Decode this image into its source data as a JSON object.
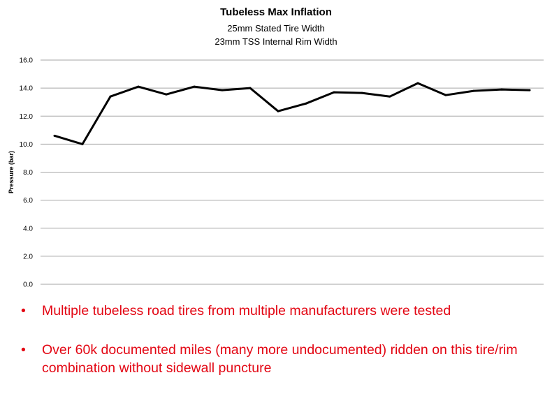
{
  "chart_data": {
    "type": "line",
    "title": "Tubeless Max Inflation",
    "subtitle_lines": [
      "25mm Stated Tire Width",
      "23mm TSS Internal Rim Width"
    ],
    "xlabel": "",
    "ylabel": "Pressure (bar)",
    "ylim": [
      0,
      16
    ],
    "yticks": [
      "0.0",
      "2.0",
      "4.0",
      "6.0",
      "8.0",
      "10.0",
      "12.0",
      "14.0",
      "16.0"
    ],
    "grid": true,
    "series": [
      {
        "color": "#000000",
        "values": [
          10.6,
          10.0,
          13.4,
          14.1,
          13.55,
          14.1,
          13.85,
          14.0,
          12.35,
          12.9,
          13.7,
          13.65,
          13.4,
          14.35,
          13.5,
          13.8,
          13.9,
          13.85
        ]
      }
    ]
  },
  "bullets": {
    "symbol": "•",
    "items": [
      "Multiple tubeless road tires from multiple manufacturers were tested",
      "Over 60k documented miles (many more undocumented) ridden on this tire/rim combination without sidewall puncture"
    ],
    "color": "#e30613"
  }
}
